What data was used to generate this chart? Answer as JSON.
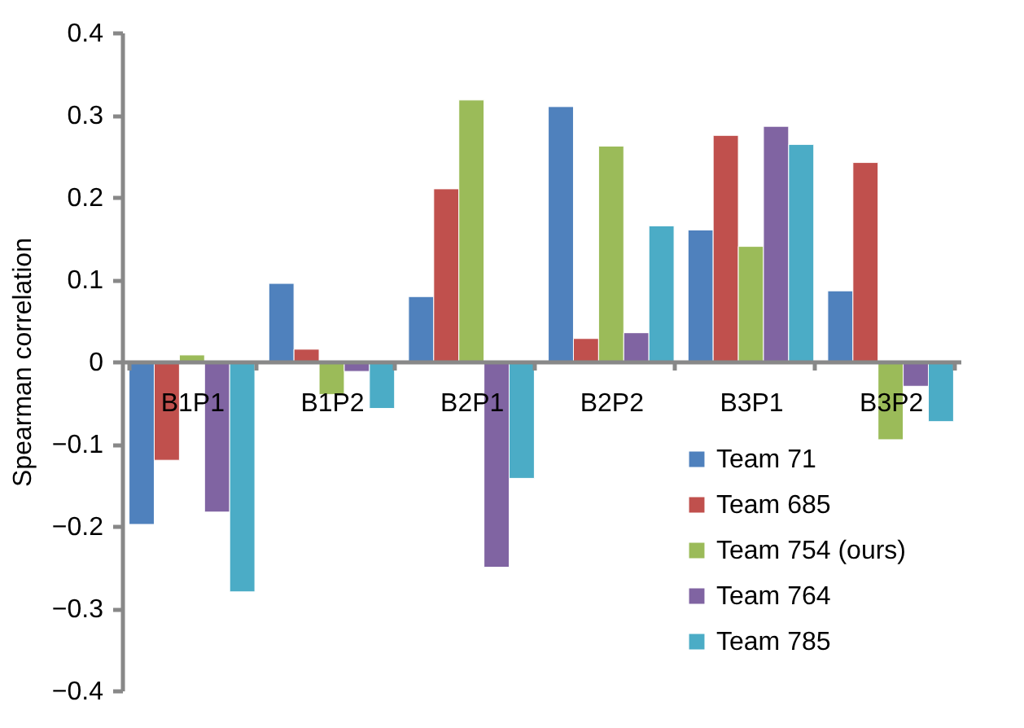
{
  "chart_data": {
    "type": "bar",
    "ylabel": "Spearman correlation",
    "categories": [
      "B1P1",
      "B1P2",
      "B2P1",
      "B2P2",
      "B3P1",
      "B3P2"
    ],
    "series": [
      {
        "name": "Team 71",
        "color": "#4f81bd",
        "values": [
          -0.198,
          0.095,
          0.079,
          0.31,
          0.16,
          0.086
        ]
      },
      {
        "name": "Team 685",
        "color": "#c0504d",
        "values": [
          -0.12,
          0.015,
          0.21,
          0.028,
          0.275,
          0.242
        ]
      },
      {
        "name": "Team 754 (ours)",
        "color": "#9bbb59",
        "values": [
          0.008,
          -0.04,
          0.318,
          0.262,
          0.14,
          -0.095
        ]
      },
      {
        "name": "Team 764",
        "color": "#8064a2",
        "values": [
          -0.183,
          -0.012,
          -0.25,
          0.035,
          0.286,
          -0.03
        ]
      },
      {
        "name": "Team 785",
        "color": "#4bacc6",
        "values": [
          -0.28,
          -0.057,
          -0.142,
          0.165,
          0.264,
          -0.073
        ]
      }
    ],
    "ylim": [
      -0.4,
      0.4
    ],
    "yticks": [
      -0.4,
      -0.3,
      -0.2,
      -0.1,
      {
        "value": 0,
        "label": "0"
      },
      0.1,
      0.2,
      0.3,
      0.4
    ],
    "grid": false,
    "legend": "bottom right"
  }
}
